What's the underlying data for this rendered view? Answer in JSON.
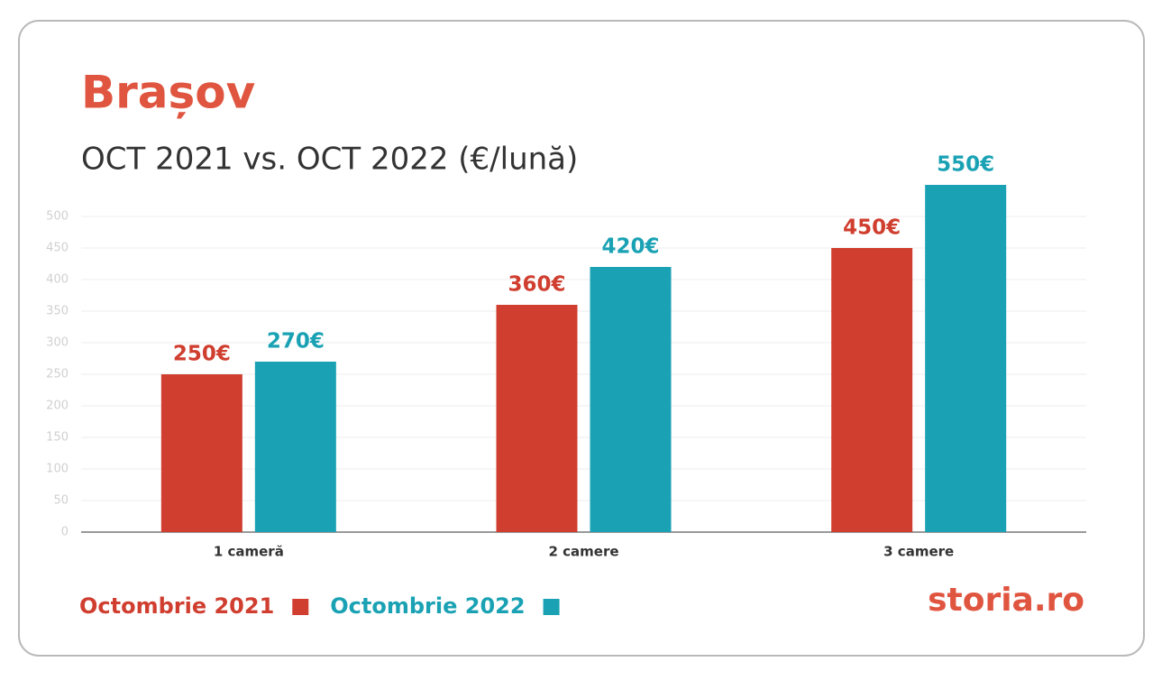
{
  "chart_data": {
    "type": "bar",
    "title": "Brașov",
    "subtitle": "OCT 2021 vs. OCT 2022 (€/lună)",
    "categories": [
      "1 cameră",
      "2 camere",
      "3 camere"
    ],
    "series": [
      {
        "name": "Octombrie 2021",
        "color": "#d03e2f",
        "values": [
          250,
          360,
          450
        ],
        "value_labels": [
          "250€",
          "360€",
          "450€"
        ]
      },
      {
        "name": "Octombrie 2022",
        "color": "#1aa2b4",
        "values": [
          270,
          420,
          550
        ],
        "value_labels": [
          "270€",
          "420€",
          "550€"
        ]
      }
    ],
    "ylim": [
      0,
      550
    ],
    "yticks": [
      0,
      50,
      100,
      150,
      200,
      250,
      300,
      350,
      400,
      450,
      500
    ],
    "grid": true,
    "legend": "bottom-left",
    "logo": "storia.ro"
  }
}
